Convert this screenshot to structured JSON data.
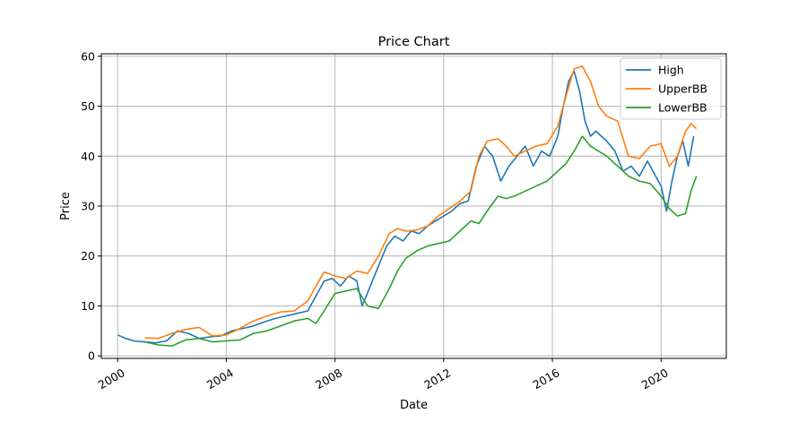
{
  "chart_data": {
    "type": "line",
    "title": "Price Chart",
    "xlabel": "Date",
    "ylabel": "Price",
    "xlim": [
      1999.4,
      2022.4
    ],
    "ylim": [
      -0.5,
      60.5
    ],
    "xticks": [
      2000,
      2004,
      2008,
      2012,
      2016,
      2020
    ],
    "yticks": [
      0,
      10,
      20,
      30,
      40,
      50,
      60
    ],
    "grid": true,
    "legend": "top-right",
    "series": [
      {
        "name": "High",
        "color": "#1f77b4",
        "x": [
          2000.0,
          2000.3,
          2000.6,
          2001.0,
          2001.4,
          2001.8,
          2002.2,
          2002.6,
          2003.0,
          2003.4,
          2003.8,
          2004.2,
          2004.6,
          2005.0,
          2005.4,
          2005.8,
          2006.2,
          2006.6,
          2007.0,
          2007.3,
          2007.6,
          2007.9,
          2008.2,
          2008.5,
          2008.8,
          2009.0,
          2009.3,
          2009.6,
          2009.9,
          2010.2,
          2010.5,
          2010.8,
          2011.1,
          2011.4,
          2011.7,
          2012.0,
          2012.3,
          2012.6,
          2012.9,
          2013.2,
          2013.5,
          2013.8,
          2014.1,
          2014.4,
          2014.7,
          2015.0,
          2015.3,
          2015.6,
          2015.9,
          2016.2,
          2016.4,
          2016.6,
          2016.8,
          2017.0,
          2017.2,
          2017.4,
          2017.6,
          2017.8,
          2018.0,
          2018.3,
          2018.6,
          2018.9,
          2019.2,
          2019.5,
          2019.8,
          2020.0,
          2020.2,
          2020.4,
          2020.6,
          2020.8,
          2021.0,
          2021.2
        ],
        "values": [
          4.2,
          3.5,
          3.0,
          2.8,
          2.6,
          3.0,
          5.0,
          4.5,
          3.5,
          3.8,
          4.0,
          5.0,
          5.5,
          6.0,
          6.8,
          7.5,
          8.0,
          8.5,
          9.0,
          12.0,
          15.0,
          15.5,
          14.0,
          16.0,
          15.0,
          10.0,
          14.0,
          18.0,
          22.0,
          24.0,
          23.0,
          25.0,
          24.5,
          26.0,
          27.0,
          28.0,
          29.0,
          30.5,
          31.0,
          38.0,
          42.0,
          40.0,
          35.0,
          38.0,
          40.0,
          42.0,
          38.0,
          41.0,
          40.0,
          44.0,
          50.0,
          55.0,
          57.0,
          53.0,
          47.0,
          44.0,
          45.0,
          44.0,
          43.0,
          41.0,
          37.0,
          38.0,
          36.0,
          39.0,
          36.0,
          34.0,
          29.0,
          35.0,
          40.0,
          43.0,
          38.0,
          44.0
        ]
      },
      {
        "name": "UpperBB",
        "color": "#ff7f0e",
        "x": [
          2001.0,
          2001.5,
          2002.0,
          2002.5,
          2003.0,
          2003.5,
          2004.0,
          2004.5,
          2005.0,
          2005.5,
          2006.0,
          2006.5,
          2007.0,
          2007.3,
          2007.6,
          2008.0,
          2008.4,
          2008.8,
          2009.2,
          2009.6,
          2010.0,
          2010.3,
          2010.6,
          2011.0,
          2011.4,
          2011.8,
          2012.2,
          2012.6,
          2013.0,
          2013.3,
          2013.6,
          2014.0,
          2014.3,
          2014.6,
          2015.0,
          2015.4,
          2015.8,
          2016.2,
          2016.5,
          2016.8,
          2017.1,
          2017.4,
          2017.7,
          2018.0,
          2018.4,
          2018.8,
          2019.2,
          2019.6,
          2020.0,
          2020.3,
          2020.6,
          2020.9,
          2021.1,
          2021.3
        ],
        "values": [
          3.6,
          3.5,
          4.5,
          5.3,
          5.7,
          4.0,
          4.2,
          5.5,
          7.0,
          8.0,
          8.8,
          9.0,
          11.0,
          14.0,
          16.8,
          16.0,
          15.5,
          17.0,
          16.5,
          20.0,
          24.5,
          25.5,
          25.0,
          25.2,
          26.0,
          28.0,
          29.5,
          31.0,
          33.0,
          40.0,
          43.0,
          43.5,
          42.0,
          40.0,
          41.0,
          42.0,
          42.5,
          46.0,
          52.0,
          57.5,
          58.0,
          55.0,
          50.0,
          48.0,
          47.0,
          40.0,
          39.5,
          42.0,
          42.5,
          38.0,
          40.0,
          45.0,
          46.5,
          45.5
        ]
      },
      {
        "name": "LowerBB",
        "color": "#2ca02c",
        "x": [
          2001.0,
          2001.5,
          2002.0,
          2002.5,
          2003.0,
          2003.5,
          2004.0,
          2004.5,
          2005.0,
          2005.5,
          2006.0,
          2006.5,
          2007.0,
          2007.3,
          2007.6,
          2008.0,
          2008.4,
          2008.8,
          2009.2,
          2009.6,
          2010.0,
          2010.3,
          2010.6,
          2011.0,
          2011.4,
          2011.8,
          2012.2,
          2012.6,
          2013.0,
          2013.3,
          2013.6,
          2014.0,
          2014.3,
          2014.6,
          2015.0,
          2015.4,
          2015.8,
          2016.2,
          2016.5,
          2016.8,
          2017.1,
          2017.4,
          2017.7,
          2018.0,
          2018.4,
          2018.8,
          2019.2,
          2019.6,
          2020.0,
          2020.3,
          2020.6,
          2020.9,
          2021.1,
          2021.3
        ],
        "values": [
          2.8,
          2.2,
          2.0,
          3.2,
          3.5,
          2.8,
          3.0,
          3.2,
          4.5,
          5.0,
          6.0,
          7.0,
          7.5,
          6.5,
          9.0,
          12.5,
          13.0,
          13.5,
          10.0,
          9.5,
          13.5,
          17.0,
          19.5,
          21.0,
          22.0,
          22.5,
          23.0,
          25.0,
          27.0,
          26.5,
          29.0,
          32.0,
          31.5,
          32.0,
          33.0,
          34.0,
          35.0,
          37.0,
          38.5,
          41.0,
          44.0,
          42.0,
          41.0,
          40.0,
          38.0,
          36.0,
          35.0,
          34.5,
          32.0,
          29.5,
          28.0,
          28.5,
          33.0,
          36.0
        ]
      }
    ]
  }
}
